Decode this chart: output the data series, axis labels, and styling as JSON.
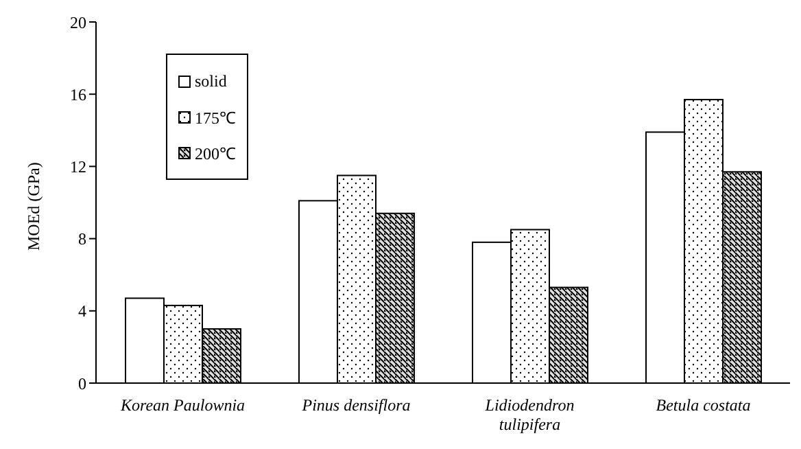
{
  "chart_data": {
    "type": "bar",
    "ylabel": "MOEd (GPa)",
    "categories": [
      "Korean Paulownia",
      "Pinus densiflora",
      "Lidiodendron tulipifera",
      "Betula costata"
    ],
    "series": [
      {
        "name": "solid",
        "color": "#ffffff",
        "values": [
          4.7,
          10.1,
          7.8,
          13.9
        ]
      },
      {
        "name": "175℃",
        "color": "#ffffff",
        "values": [
          4.3,
          11.5,
          8.5,
          15.7
        ]
      },
      {
        "name": "200℃",
        "color": "#e0e0e0",
        "values": [
          3.0,
          9.4,
          5.3,
          11.7
        ]
      }
    ],
    "ylim": [
      0,
      20
    ],
    "yticks": [
      0,
      4,
      8,
      12,
      16,
      20
    ],
    "grid": false,
    "legend": "top left"
  }
}
